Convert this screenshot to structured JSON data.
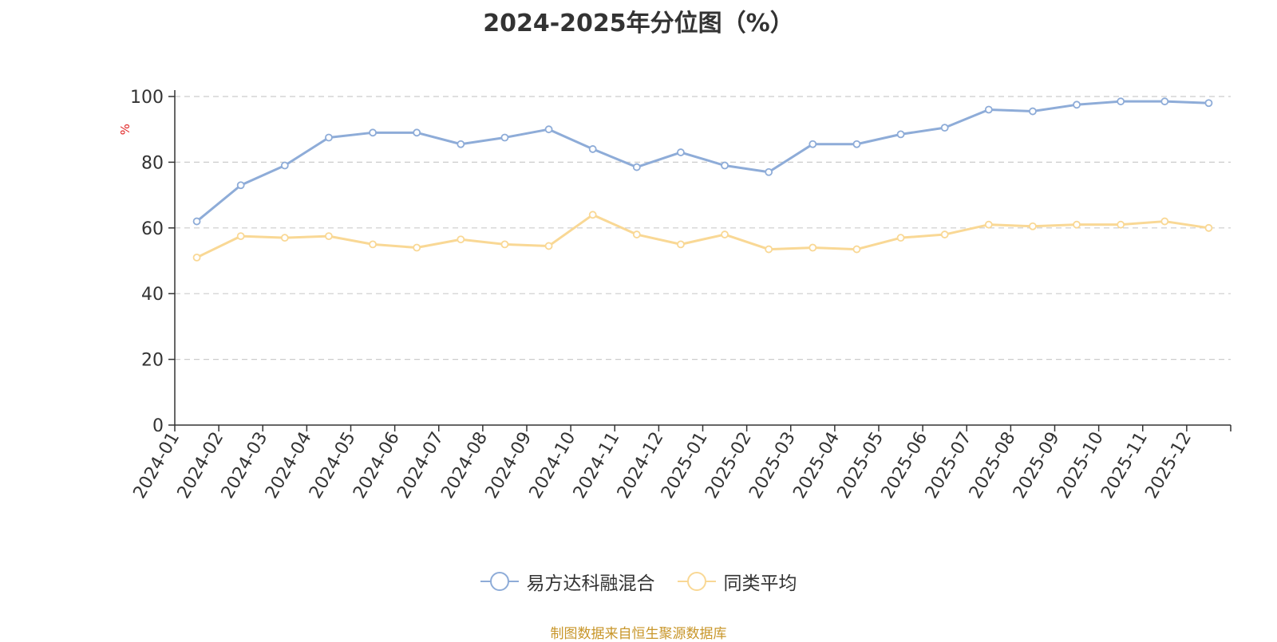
{
  "chart_data": {
    "type": "line",
    "title": "2024-2025年分位图（%）",
    "ylabel": "%",
    "xlabel": "",
    "ylim": [
      0,
      100
    ],
    "yticks": [
      0,
      20,
      40,
      60,
      80,
      100
    ],
    "grid": true,
    "legend_position": "bottom",
    "categories": [
      "2024-01",
      "2024-02",
      "2024-03",
      "2024-04",
      "2024-05",
      "2024-06",
      "2024-07",
      "2024-08",
      "2024-09",
      "2024-10",
      "2024-11",
      "2024-12",
      "2025-01",
      "2025-02",
      "2025-03",
      "2025-04",
      "2025-05",
      "2025-06",
      "2025-07",
      "2025-08",
      "2025-09",
      "2025-10",
      "2025-11",
      "2025-12"
    ],
    "series": [
      {
        "name": "易方达科融混合",
        "color": "#8eacd8",
        "values": [
          62,
          73,
          79,
          87.5,
          89,
          89,
          85.5,
          87.5,
          90,
          84,
          78.5,
          83,
          79,
          77,
          85.5,
          85.5,
          88.5,
          90.5,
          96,
          95.5,
          97.5,
          98.5,
          98.5,
          98
        ]
      },
      {
        "name": "同类平均",
        "color": "#f9d895",
        "values": [
          51,
          57.5,
          57,
          57.5,
          55,
          54,
          56.5,
          55,
          54.5,
          64,
          58,
          55,
          58,
          53.5,
          54,
          53.5,
          57,
          58,
          61,
          60.5,
          61,
          61,
          62,
          60
        ]
      }
    ]
  },
  "source_text": "制图数据来自恒生聚源数据库",
  "colors": {
    "axis": "#333333",
    "grid": "#cccccc",
    "ylabel": "#e02020",
    "source": "#c8962a"
  }
}
